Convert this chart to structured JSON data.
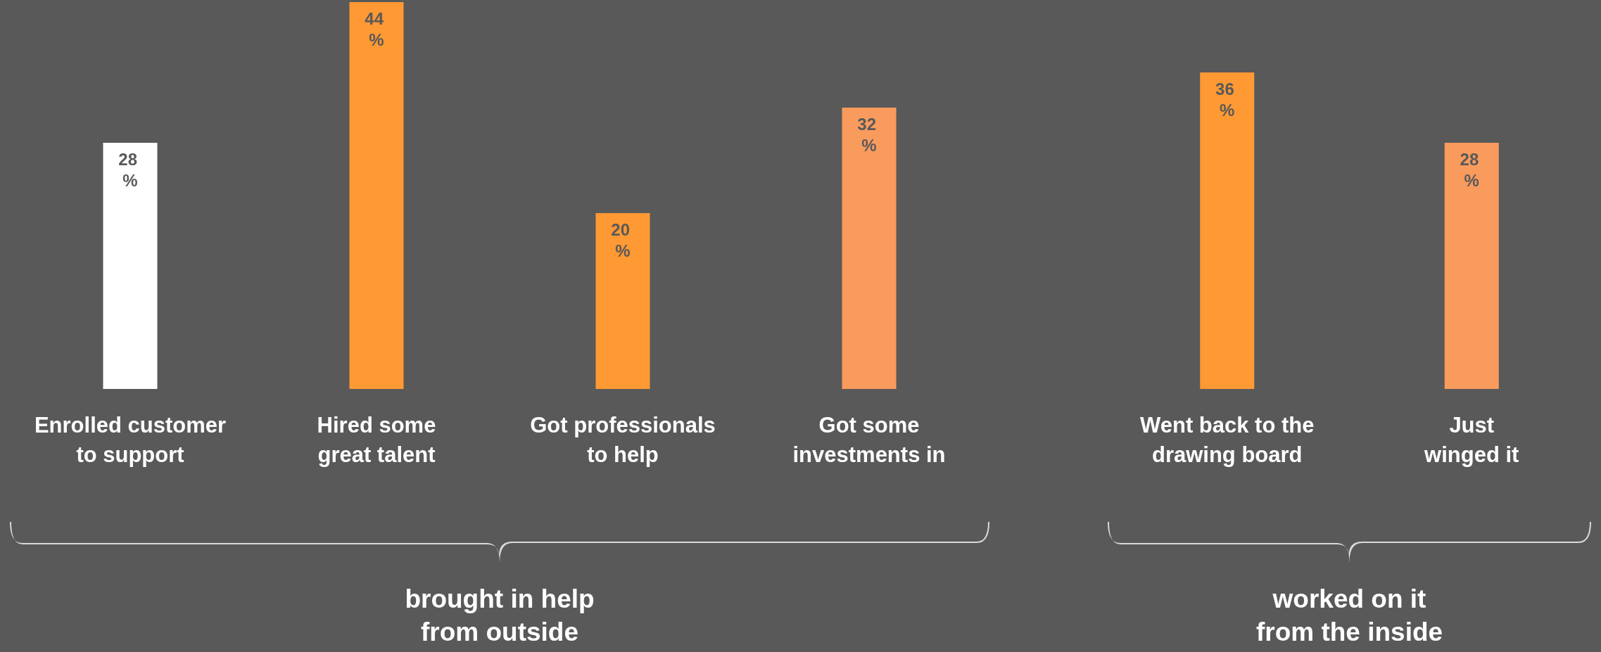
{
  "chart_data": [
    {
      "type": "bar",
      "categories": [
        "Enrolled customer\nto support",
        "Hired some\ngreat talent",
        "Got professionals\nto help",
        "Got some\ninvestments in"
      ],
      "values": [
        28,
        44,
        20,
        32
      ],
      "colors": [
        "#ffffff",
        "#ff9933",
        "#ff9933",
        "#fa9b5e"
      ],
      "value_labels": [
        "28 %",
        "44 %",
        "20 %",
        "32 %"
      ],
      "xlabel": "brought in help\nfrom outside"
    },
    {
      "type": "bar",
      "categories": [
        "Went back to the\ndrawing board",
        "Just\nwinged it"
      ],
      "values": [
        36,
        28
      ],
      "colors": [
        "#ff9933",
        "#fa9b5e"
      ],
      "value_labels": [
        "36 %",
        "28 %"
      ],
      "xlabel": "worked on it\nfrom the inside"
    }
  ]
}
